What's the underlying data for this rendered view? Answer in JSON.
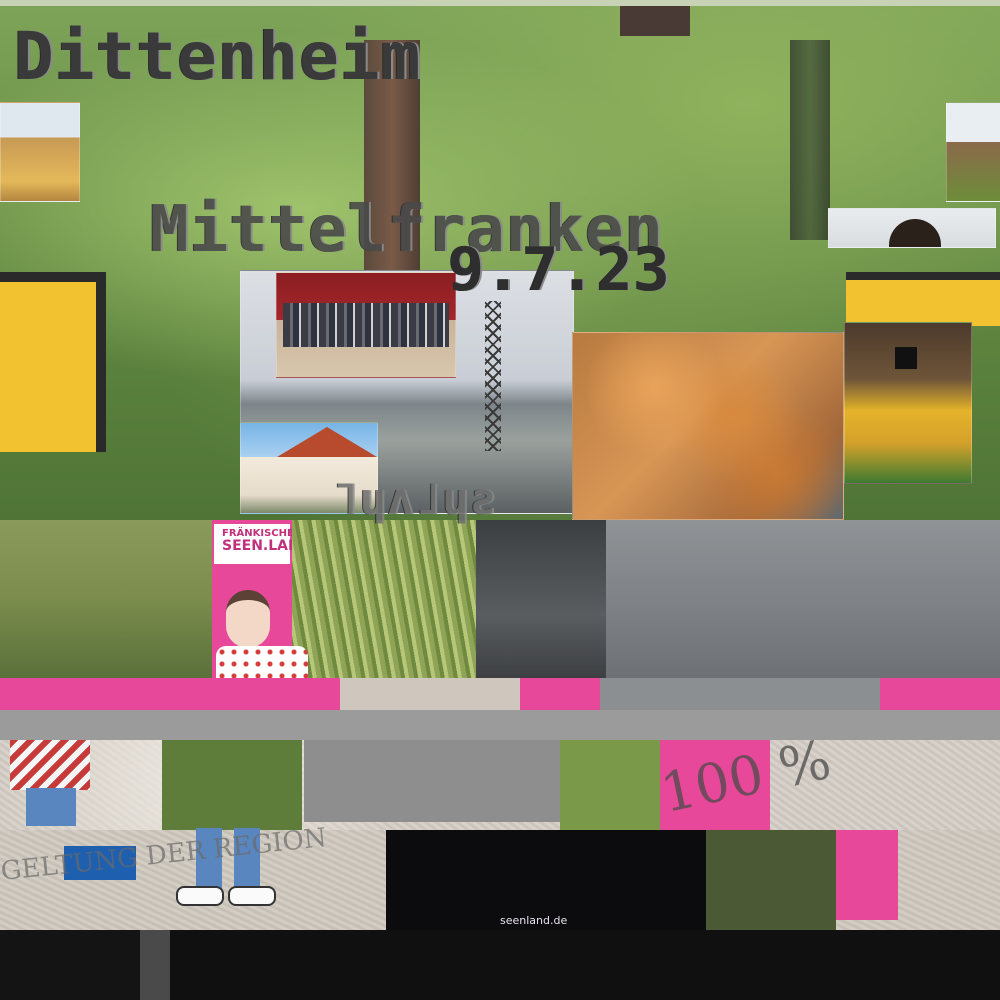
{
  "headline": {
    "town": "Dittenheim",
    "region": "Mittelfranken",
    "date": "9.7.23",
    "caption_glitch": "˥ɥʌ˩ɥƨ"
  },
  "brochure": {
    "logo_line1": "FRÄNKISCHES",
    "logo_line2": "SEEN.LAND",
    "stamp": "100 %",
    "stamp_lower": "GELTUNG DER REGION",
    "url": "seenland.de"
  },
  "colors": {
    "brand_pink": "#e8489a",
    "sign_yellow": "#f2c230",
    "foliage_green": "#7ea459"
  }
}
